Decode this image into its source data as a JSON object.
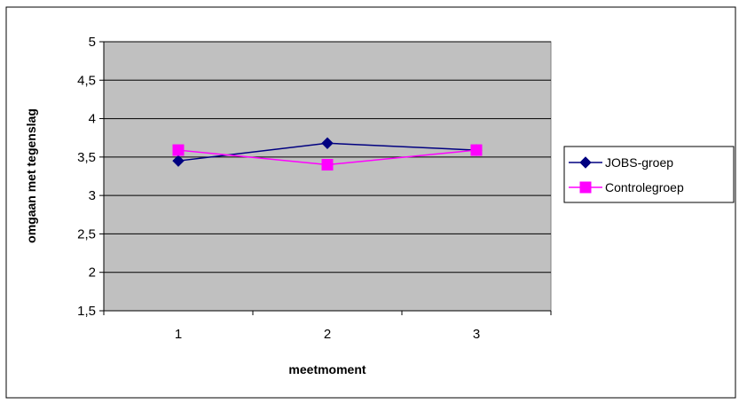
{
  "chart_data": {
    "type": "line",
    "title": "",
    "xlabel": "meetmoment",
    "ylabel": "omgaan met tegenslag",
    "categories": [
      "1",
      "2",
      "3"
    ],
    "ylim": [
      1.5,
      5
    ],
    "yticks": [
      "1,5",
      "2",
      "2,5",
      "3",
      "3,5",
      "4",
      "4,5",
      "5"
    ],
    "grid": "horizontal",
    "legend_position": "right",
    "plot_background": "#c0c0c0",
    "series": [
      {
        "name": "JOBS-groep",
        "values": [
          3.45,
          3.68,
          3.59
        ],
        "color": "#000080",
        "marker": "diamond"
      },
      {
        "name": "Controlegroep",
        "values": [
          3.59,
          3.4,
          3.59
        ],
        "color": "#ff00ff",
        "marker": "square"
      }
    ]
  }
}
